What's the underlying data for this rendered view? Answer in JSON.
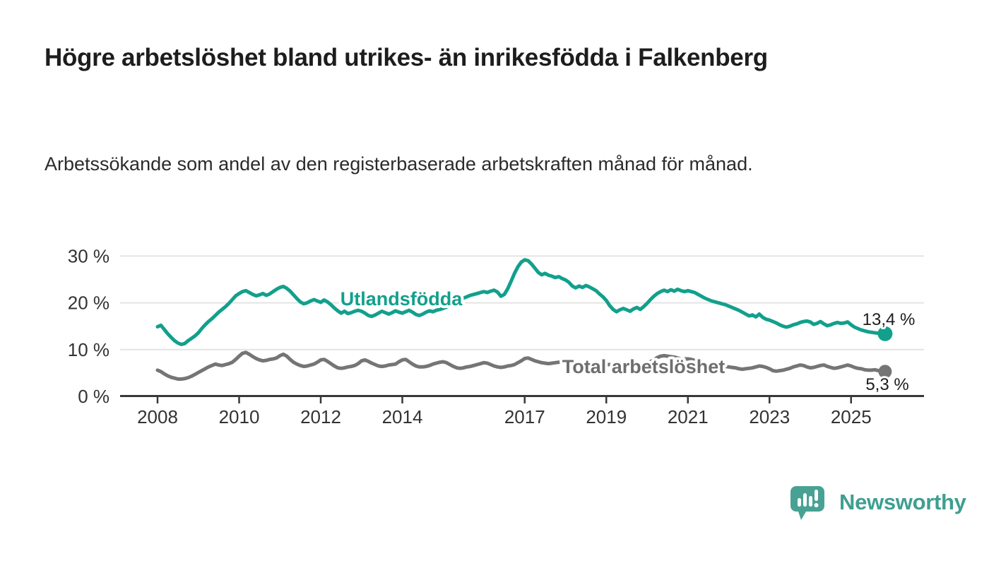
{
  "header": {
    "title": "Högre arbetslöshet bland utrikes- än inrikesfödda i Falkenberg",
    "subtitle": "Arbetssökande som andel av den registerbaserade arbetskraften månad för månad."
  },
  "logo": {
    "text": "Newsworthy",
    "icon": "newsworthy-speech-bubble-chart-icon",
    "bubble_color": "#48A294",
    "text_color": "#3E9F90"
  },
  "chart_data": {
    "type": "line",
    "title": "",
    "xlabel": "",
    "ylabel": "",
    "x_unit": "month",
    "x_start": "2008-01",
    "x_end": "2025-11",
    "ylim": [
      0,
      30
    ],
    "grid": "horizontal-only",
    "legend_position": "labels-on-lines",
    "y_ticks": {
      "values": [
        0,
        10,
        20,
        30
      ],
      "labels": [
        "0 %",
        "10 %",
        "20 %",
        "30 %"
      ]
    },
    "x_ticks": {
      "values": [
        2008,
        2010,
        2012,
        2014,
        2017,
        2019,
        2021,
        2023,
        2025
      ],
      "labels": [
        "2008",
        "2010",
        "2012",
        "2014",
        "2017",
        "2019",
        "2021",
        "2023",
        "2025"
      ]
    },
    "series": [
      {
        "name": "Utlandsfödda",
        "color": "#12A08C",
        "end_label": "13,4 %",
        "end_value": 13.4,
        "values": [
          14.9,
          15.2,
          14.3,
          13.4,
          12.6,
          11.9,
          11.4,
          11.1,
          11.3,
          11.9,
          12.4,
          12.9,
          13.6,
          14.5,
          15.3,
          16.0,
          16.6,
          17.3,
          18.0,
          18.6,
          19.2,
          19.9,
          20.7,
          21.5,
          22.0,
          22.4,
          22.6,
          22.2,
          21.8,
          21.5,
          21.7,
          22.0,
          21.6,
          21.9,
          22.4,
          22.9,
          23.3,
          23.5,
          23.1,
          22.5,
          21.7,
          20.9,
          20.2,
          19.8,
          20.0,
          20.4,
          20.7,
          20.4,
          20.1,
          20.6,
          20.2,
          19.6,
          18.9,
          18.3,
          17.8,
          18.2,
          17.7,
          17.9,
          18.2,
          18.4,
          18.2,
          17.8,
          17.3,
          17.1,
          17.4,
          17.8,
          18.2,
          17.9,
          17.6,
          17.9,
          18.3,
          18.0,
          17.8,
          18.1,
          18.4,
          18.0,
          17.5,
          17.3,
          17.6,
          18.0,
          18.3,
          18.1,
          18.4,
          18.6,
          18.8,
          19.1,
          19.5,
          19.9,
          20.3,
          20.7,
          21.0,
          21.3,
          21.6,
          21.8,
          22.0,
          22.2,
          22.4,
          22.2,
          22.5,
          22.7,
          22.3,
          21.4,
          21.8,
          23.0,
          24.6,
          26.3,
          27.7,
          28.7,
          29.2,
          29.0,
          28.3,
          27.4,
          26.5,
          26.0,
          26.3,
          25.9,
          25.7,
          25.4,
          25.6,
          25.2,
          24.9,
          24.4,
          23.6,
          23.2,
          23.6,
          23.3,
          23.7,
          23.4,
          23.0,
          22.6,
          21.9,
          21.3,
          20.5,
          19.4,
          18.6,
          18.1,
          18.5,
          18.8,
          18.5,
          18.2,
          18.7,
          19.0,
          18.6,
          19.2,
          19.9,
          20.7,
          21.4,
          22.0,
          22.4,
          22.7,
          22.4,
          22.8,
          22.5,
          22.9,
          22.6,
          22.4,
          22.6,
          22.4,
          22.2,
          21.8,
          21.4,
          21.0,
          20.7,
          20.4,
          20.2,
          20.0,
          19.8,
          19.6,
          19.3,
          19.0,
          18.7,
          18.4,
          18.0,
          17.6,
          17.2,
          17.4,
          17.0,
          17.6,
          16.9,
          16.5,
          16.3,
          16.0,
          15.7,
          15.3,
          15.0,
          14.8,
          15.0,
          15.3,
          15.5,
          15.8,
          16.0,
          16.1,
          15.9,
          15.4,
          15.6,
          16.0,
          15.5,
          15.1,
          15.3,
          15.6,
          15.8,
          15.6,
          15.7,
          15.9,
          15.3,
          14.8,
          14.5,
          14.2,
          14.0,
          13.8,
          13.7,
          13.6,
          13.5,
          13.5,
          13.4
        ]
      },
      {
        "name": "Total arbetslöshet",
        "color": "#757575",
        "end_label": "5,3 %",
        "end_value": 5.3,
        "values": [
          5.6,
          5.3,
          4.8,
          4.4,
          4.1,
          3.9,
          3.7,
          3.7,
          3.8,
          4.0,
          4.3,
          4.7,
          5.1,
          5.5,
          5.9,
          6.3,
          6.6,
          6.9,
          6.7,
          6.6,
          6.8,
          7.0,
          7.3,
          7.9,
          8.6,
          9.2,
          9.4,
          9.0,
          8.5,
          8.1,
          7.8,
          7.6,
          7.7,
          7.9,
          8.0,
          8.2,
          8.7,
          9.0,
          8.6,
          7.9,
          7.3,
          6.9,
          6.6,
          6.4,
          6.5,
          6.7,
          6.9,
          7.3,
          7.8,
          7.9,
          7.5,
          7.0,
          6.5,
          6.1,
          6.0,
          6.1,
          6.3,
          6.4,
          6.6,
          7.0,
          7.6,
          7.8,
          7.5,
          7.1,
          6.8,
          6.5,
          6.4,
          6.5,
          6.7,
          6.8,
          6.9,
          7.4,
          7.8,
          7.9,
          7.4,
          6.9,
          6.5,
          6.3,
          6.3,
          6.4,
          6.6,
          6.9,
          7.1,
          7.3,
          7.4,
          7.2,
          6.8,
          6.4,
          6.1,
          6.0,
          6.1,
          6.3,
          6.4,
          6.6,
          6.8,
          7.0,
          7.2,
          7.1,
          6.8,
          6.5,
          6.3,
          6.2,
          6.3,
          6.5,
          6.6,
          6.8,
          7.2,
          7.6,
          8.1,
          8.2,
          7.9,
          7.6,
          7.4,
          7.2,
          7.1,
          7.0,
          7.1,
          7.2,
          7.3,
          7.4,
          7.0,
          6.9,
          6.6,
          6.3,
          6.1,
          6.0,
          6.0,
          6.1,
          6.2,
          6.3,
          6.4,
          6.6,
          6.8,
          6.8,
          6.6,
          6.4,
          6.2,
          6.2,
          6.3,
          6.4,
          6.5,
          6.6,
          6.7,
          6.9,
          7.2,
          7.4,
          7.8,
          8.3,
          8.6,
          8.7,
          8.6,
          8.5,
          8.4,
          8.2,
          8.0,
          8.0,
          8.0,
          7.9,
          7.7,
          7.4,
          7.1,
          6.9,
          6.8,
          6.7,
          6.6,
          6.5,
          6.4,
          6.4,
          6.3,
          6.2,
          6.1,
          5.9,
          5.8,
          5.9,
          6.0,
          6.1,
          6.3,
          6.5,
          6.4,
          6.2,
          5.9,
          5.5,
          5.4,
          5.5,
          5.6,
          5.8,
          6.0,
          6.3,
          6.5,
          6.7,
          6.6,
          6.3,
          6.1,
          6.2,
          6.4,
          6.6,
          6.7,
          6.4,
          6.2,
          6.0,
          6.1,
          6.3,
          6.5,
          6.7,
          6.5,
          6.2,
          6.0,
          5.9,
          5.7,
          5.6,
          5.6,
          5.7,
          5.5,
          5.4,
          5.3
        ]
      }
    ]
  }
}
